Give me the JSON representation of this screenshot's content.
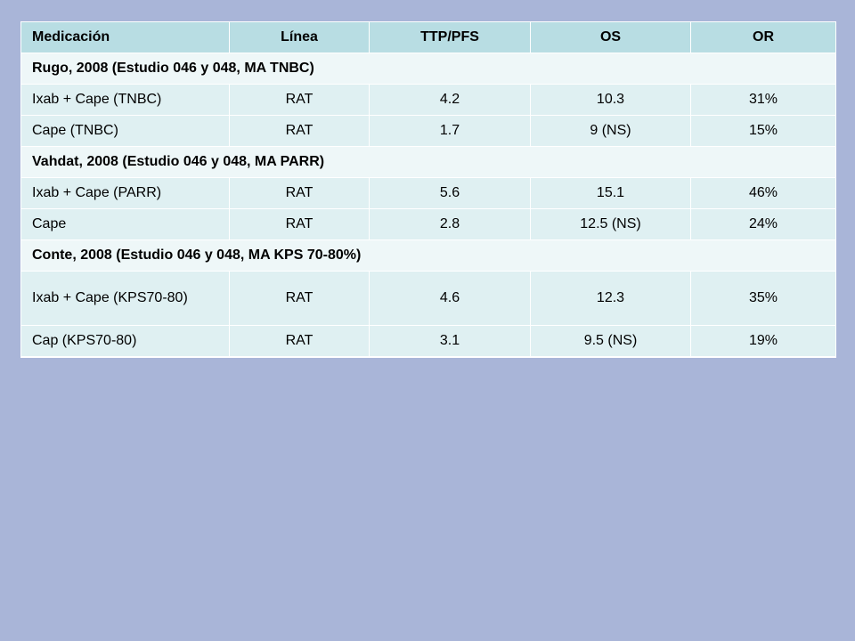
{
  "table": {
    "headers": [
      "Medicación",
      "Línea",
      "TTP/PFS",
      "OS",
      "OR"
    ],
    "groups": [
      {
        "title": "Rugo, 2008 (Estudio 046 y 048, MA TNBC)",
        "rows": [
          [
            "Ixab + Cape (TNBC)",
            "RAT",
            "4.2",
            "10.3",
            "31%"
          ],
          [
            "Cape (TNBC)",
            "RAT",
            "1.7",
            "9 (NS)",
            "15%"
          ]
        ]
      },
      {
        "title": "Vahdat, 2008 (Estudio 046 y 048, MA PARR)",
        "rows": [
          [
            "Ixab + Cape (PARR)",
            "RAT",
            "5.6",
            "15.1",
            "46%"
          ],
          [
            "Cape",
            "RAT",
            "2.8",
            "12.5 (NS)",
            "24%"
          ]
        ]
      },
      {
        "title": "Conte, 2008 (Estudio 046 y 048, MA KPS 70-80%)",
        "rows": [
          [
            "Ixab + Cape (KPS70-80)",
            "RAT",
            "4.6",
            "12.3",
            "35%"
          ],
          [
            "Cap (KPS70-80)",
            "RAT",
            "3.1",
            "9.5 (NS)",
            "19%"
          ]
        ]
      }
    ]
  },
  "colors": {
    "page_background": "#a9b5d8",
    "header_fill": "#b8dde3",
    "group_fill": "#eef7f8",
    "row_fill": "#dff0f2",
    "grid_lines": "#ffffff"
  }
}
